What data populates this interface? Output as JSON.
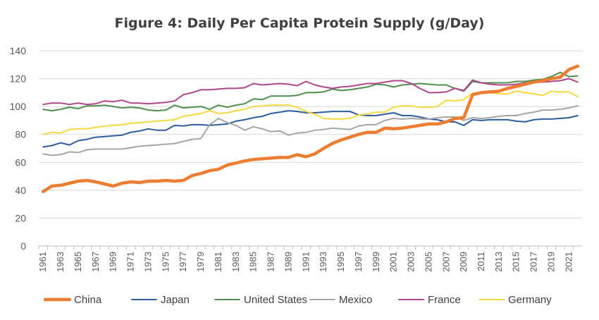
{
  "chart_data": {
    "type": "line",
    "title": "Figure 4: Daily Per Capita Protein Supply (g/Day)",
    "xlabel": "",
    "ylabel": "",
    "ylim": [
      0,
      140
    ],
    "yticks": [
      "0",
      "20",
      "40",
      "60",
      "80",
      "100",
      "120",
      "140"
    ],
    "grid": true,
    "legend_position": "bottom",
    "xtick_labels": [
      "1961",
      "1963",
      "1965",
      "1967",
      "1969",
      "1971",
      "1973",
      "1975",
      "1977",
      "1979",
      "1981",
      "1983",
      "1985",
      "1987",
      "1989",
      "1991",
      "1993",
      "1995",
      "1997",
      "1999",
      "2001",
      "2003",
      "2005",
      "2007",
      "2009",
      "2011",
      "2013",
      "2015",
      "2017",
      "2019",
      "2021"
    ],
    "x": [
      1961,
      1962,
      1963,
      1964,
      1965,
      1966,
      1967,
      1968,
      1969,
      1970,
      1971,
      1972,
      1973,
      1974,
      1975,
      1976,
      1977,
      1978,
      1979,
      1980,
      1981,
      1982,
      1983,
      1984,
      1985,
      1986,
      1987,
      1988,
      1989,
      1990,
      1991,
      1992,
      1993,
      1994,
      1995,
      1996,
      1997,
      1998,
      1999,
      2000,
      2001,
      2002,
      2003,
      2004,
      2005,
      2006,
      2007,
      2008,
      2009,
      2010,
      2011,
      2012,
      2013,
      2014,
      2015,
      2016,
      2017,
      2018,
      2019,
      2020,
      2021,
      2022
    ],
    "series": [
      {
        "name": "China",
        "color": "#ED7D31",
        "width": 4.5,
        "values": [
          39,
          43,
          43.5,
          45,
          46.5,
          47,
          46,
          44.5,
          43,
          45,
          46,
          45.5,
          46.5,
          46.5,
          47,
          46.5,
          47,
          50.5,
          52,
          54,
          55,
          58,
          59.5,
          61,
          62,
          62.5,
          63,
          63.5,
          63.5,
          65.5,
          64,
          66,
          70,
          73.5,
          76,
          78,
          80,
          81.5,
          81.5,
          84.5,
          84,
          84.5,
          85.5,
          86.5,
          87.5,
          87.5,
          89,
          91.5,
          92,
          108.5,
          110,
          110.5,
          111,
          113,
          114.5,
          116,
          117.5,
          118.5,
          120,
          121,
          126.5,
          129
        ]
      },
      {
        "name": "Japan",
        "color": "#2E5C9E",
        "width": 2,
        "values": [
          71,
          72,
          74,
          72.5,
          75.5,
          76.5,
          78,
          78.5,
          79,
          79.5,
          81.5,
          82.5,
          84,
          83,
          83,
          86.5,
          86,
          87,
          87,
          86.5,
          87,
          87.5,
          89.5,
          90.5,
          92,
          93,
          95,
          96,
          97,
          96.5,
          95.5,
          95.5,
          96,
          96.5,
          96.5,
          96.5,
          94,
          93.5,
          93.5,
          94.5,
          95.5,
          93.5,
          93.5,
          92.5,
          91,
          90.5,
          89,
          89,
          86.5,
          90.5,
          90,
          90.5,
          90.5,
          90.5,
          89.5,
          89,
          90.5,
          91,
          91,
          91.5,
          92,
          93.5
        ]
      },
      {
        "name": "United States",
        "color": "#4E8F4E",
        "width": 2,
        "values": [
          98,
          97,
          98,
          99.5,
          98.5,
          100.5,
          100.5,
          101,
          100,
          99,
          99.5,
          99,
          97.5,
          97,
          97.5,
          101,
          99,
          99.5,
          100,
          98,
          101,
          99.5,
          101,
          102,
          105.5,
          105,
          107.5,
          107.5,
          107.5,
          108,
          110,
          110,
          110.5,
          112.5,
          111.5,
          112,
          113,
          114,
          116,
          115.5,
          114,
          115.5,
          116,
          116.5,
          116,
          115.5,
          115.5,
          113,
          111,
          118,
          117,
          117,
          117,
          117,
          118,
          118,
          119,
          119.5,
          121.5,
          124.5,
          121.5,
          122
        ]
      },
      {
        "name": "Mexico",
        "color": "#A5A5A5",
        "width": 2,
        "values": [
          66,
          65,
          65.5,
          67.5,
          67,
          69,
          69.5,
          69.5,
          69.5,
          69.5,
          70.5,
          71.5,
          72,
          72.5,
          73,
          73.5,
          75,
          76.5,
          77,
          87,
          91.5,
          88.5,
          86.5,
          83,
          85.5,
          84,
          82,
          82.5,
          79.5,
          81,
          81.5,
          83,
          83.5,
          84.5,
          84,
          83.5,
          86,
          87,
          87,
          90,
          91.5,
          91,
          91.5,
          91,
          91,
          92,
          92.5,
          92.5,
          90,
          92,
          91.5,
          92,
          93,
          93.5,
          93.5,
          95,
          96,
          97.5,
          97.5,
          98,
          99,
          100.5
        ]
      },
      {
        "name": "France",
        "color": "#B0458C",
        "width": 2,
        "values": [
          101.5,
          102.5,
          102.5,
          101.5,
          102.5,
          101.5,
          102,
          104,
          103.5,
          104.5,
          102.5,
          102.5,
          102,
          102.5,
          103,
          104,
          108.5,
          110,
          112,
          112,
          112.5,
          113,
          113,
          113.5,
          116.5,
          115.5,
          116,
          116.5,
          116,
          115,
          118,
          115.5,
          114,
          113,
          114,
          114.5,
          115.5,
          116.5,
          116.5,
          117.5,
          118.5,
          118.5,
          116.5,
          113,
          110,
          110,
          110.5,
          113,
          111.5,
          119,
          117,
          116,
          115.5,
          115.5,
          116,
          117,
          117.5,
          117.5,
          118,
          118.5,
          120,
          117.5
        ]
      },
      {
        "name": "Germany",
        "color": "#F6D93F",
        "width": 2,
        "values": [
          80,
          81.5,
          81,
          83.5,
          84,
          84,
          85,
          86,
          86.5,
          87,
          88,
          88.5,
          89,
          89.5,
          90,
          90.5,
          93,
          94,
          95,
          97,
          95,
          95.5,
          97,
          98,
          100,
          100.5,
          101,
          101,
          101,
          99.5,
          96.5,
          94.5,
          91.5,
          91,
          91,
          91.5,
          94,
          94.5,
          96,
          96,
          99.5,
          100.5,
          100.5,
          99.5,
          99.5,
          100,
          104.5,
          104,
          105,
          109.5,
          110.5,
          110,
          109,
          109,
          111,
          110,
          109,
          108,
          111,
          110.5,
          110.5,
          107
        ]
      }
    ]
  }
}
